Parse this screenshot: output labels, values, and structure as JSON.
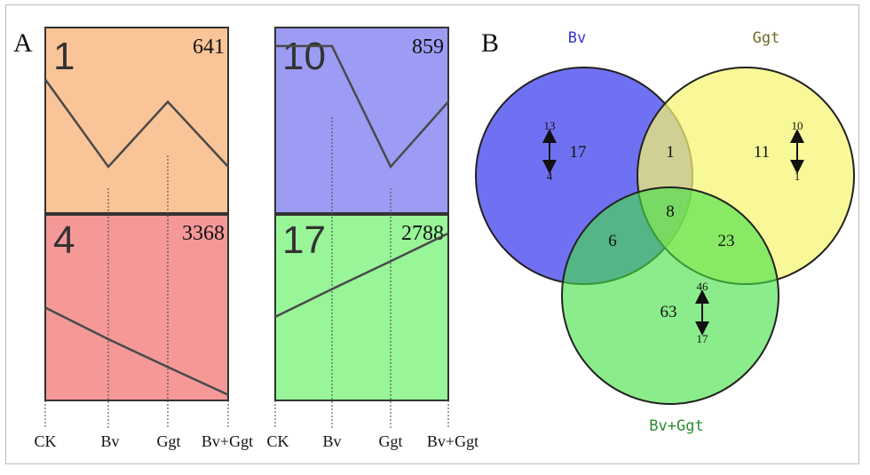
{
  "panel_a": {
    "label": "A",
    "x_axis": [
      "CK",
      "Bv",
      "Ggt",
      "Bv+Ggt"
    ],
    "profiles": [
      {
        "id": "1",
        "count": "641",
        "color": "#F9C498",
        "values": [
          0.72,
          0.25,
          0.6,
          0.25
        ]
      },
      {
        "id": "10",
        "count": "859",
        "color": "#9C9CF5",
        "values": [
          0.9,
          0.9,
          0.25,
          0.6
        ]
      },
      {
        "id": "4",
        "count": "3368",
        "color": "#F59898",
        "values": [
          0.5,
          0.33,
          0.18,
          0.03
        ]
      },
      {
        "id": "17",
        "count": "2788",
        "color": "#98F598",
        "values": [
          0.45,
          0.6,
          0.75,
          0.9
        ]
      }
    ]
  },
  "panel_b": {
    "label": "B",
    "sets": [
      {
        "name": "Bv",
        "color": "#5C5CF0",
        "label_color": "#3333cc"
      },
      {
        "name": "Ggt",
        "color": "#F5F570",
        "label_color": "#6b6b22"
      },
      {
        "name": "Bv+Ggt",
        "color": "#44E044",
        "label_color": "#2c8a2c"
      }
    ],
    "regions": {
      "bv_only": "17",
      "ggt_only": "11",
      "combo_only": "63",
      "bv_ggt": "1",
      "bv_combo": "6",
      "ggt_combo": "23",
      "all": "8"
    },
    "updown": {
      "bv": {
        "up": "13",
        "down": "4"
      },
      "ggt": {
        "up": "10",
        "down": "1"
      },
      "combo": {
        "up": "46",
        "down": "17"
      }
    }
  }
}
